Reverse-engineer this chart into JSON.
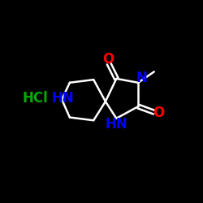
{
  "background_color": "#000000",
  "bond_color": "#ffffff",
  "N_color": "#0000ff",
  "O_color": "#ff0000",
  "Cl_color": "#00aa00",
  "line_width": 1.8,
  "font_size_atoms": 11,
  "figsize": [
    2.5,
    2.5
  ],
  "dpi": 100,
  "xlim": [
    0,
    10
  ],
  "ylim": [
    0,
    10
  ]
}
